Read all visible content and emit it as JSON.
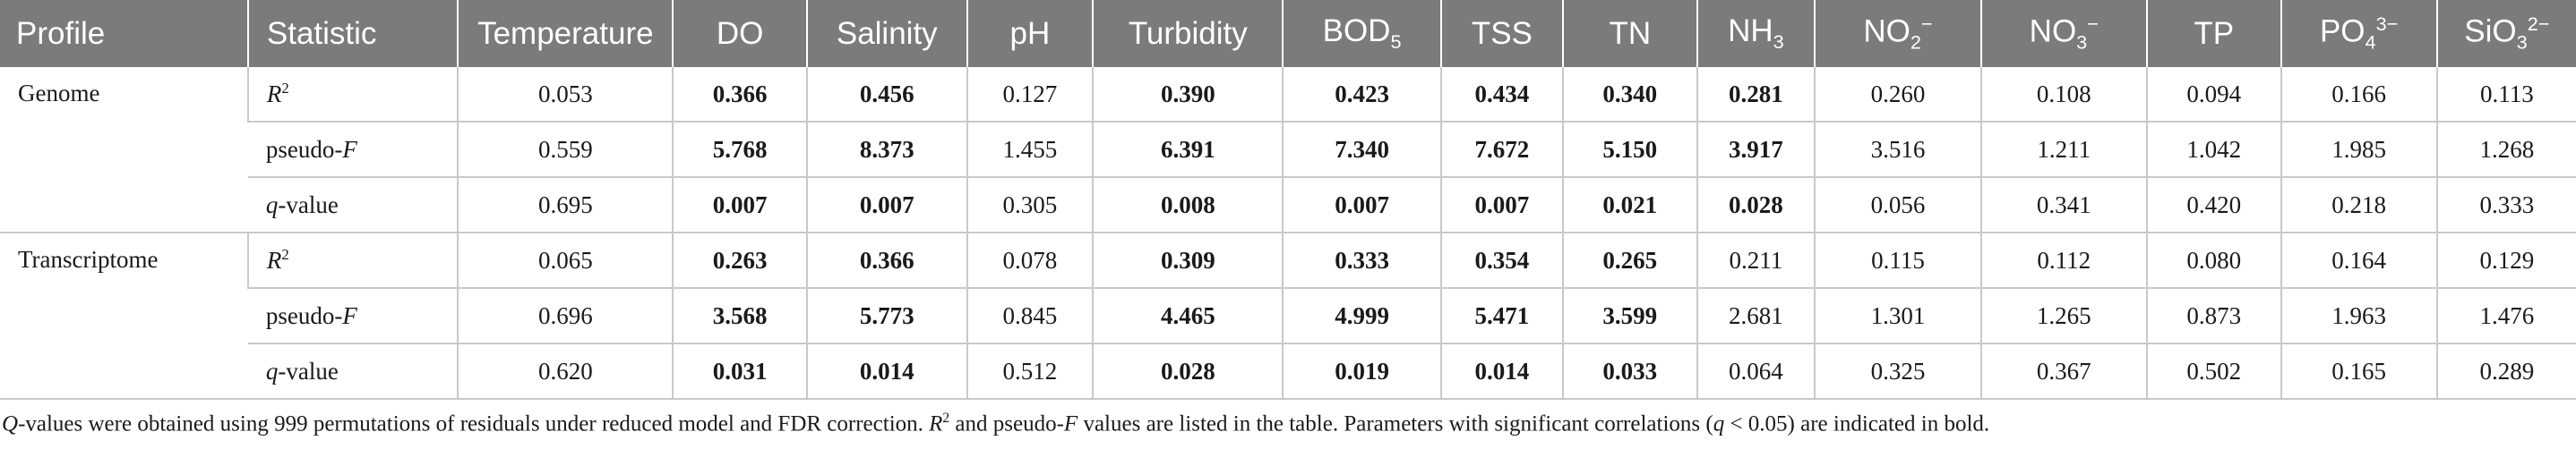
{
  "table": {
    "headers": {
      "profile": "Profile",
      "statistic": "Statistic",
      "temperature": "Temperature",
      "do": "DO",
      "salinity": "Salinity",
      "ph": "pH",
      "turbidity": "Turbidity",
      "bod_base": "BOD",
      "bod_sub": "5",
      "tss": "TSS",
      "tn": "TN",
      "nh_base": "NH",
      "nh_sub": "3",
      "no2_base": "NO",
      "no2_sub": "2",
      "no2_sup": "−",
      "no3_base": "NO",
      "no3_sub": "3",
      "no3_sup": "−",
      "tp": "TP",
      "po4_base": "PO",
      "po4_sub": "4",
      "po4_sup": "3−",
      "sio3_base": "SiO",
      "sio3_sub": "3",
      "sio3_sup": "2−"
    },
    "groups": [
      {
        "profile": "Genome",
        "rows": [
          {
            "stat_base": "R",
            "stat_sup": "2",
            "stat_suffix": "",
            "values": [
              "0.053",
              "0.366",
              "0.456",
              "0.127",
              "0.390",
              "0.423",
              "0.434",
              "0.340",
              "0.281",
              "0.260",
              "0.108",
              "0.094",
              "0.166",
              "0.113"
            ]
          },
          {
            "stat_base": "pseudo-",
            "stat_italic": "F",
            "values": [
              "0.559",
              "5.768",
              "8.373",
              "1.455",
              "6.391",
              "7.340",
              "7.672",
              "5.150",
              "3.917",
              "3.516",
              "1.211",
              "1.042",
              "1.985",
              "1.268"
            ]
          },
          {
            "stat_italic": "q",
            "stat_suffix": "-value",
            "values": [
              "0.695",
              "0.007",
              "0.007",
              "0.305",
              "0.008",
              "0.007",
              "0.007",
              "0.021",
              "0.028",
              "0.056",
              "0.341",
              "0.420",
              "0.218",
              "0.333"
            ]
          }
        ]
      },
      {
        "profile": "Transcriptome",
        "rows": [
          {
            "stat_base": "R",
            "stat_sup": "2",
            "values": [
              "0.065",
              "0.263",
              "0.366",
              "0.078",
              "0.309",
              "0.333",
              "0.354",
              "0.265",
              "0.211",
              "0.115",
              "0.112",
              "0.080",
              "0.164",
              "0.129"
            ]
          },
          {
            "stat_base": "pseudo-",
            "stat_italic": "F",
            "values": [
              "0.696",
              "3.568",
              "5.773",
              "0.845",
              "4.465",
              "4.999",
              "5.471",
              "3.599",
              "2.681",
              "1.301",
              "1.265",
              "0.873",
              "1.963",
              "1.476"
            ]
          },
          {
            "stat_italic": "q",
            "stat_suffix": "-value",
            "values": [
              "0.620",
              "0.031",
              "0.014",
              "0.512",
              "0.028",
              "0.019",
              "0.014",
              "0.033",
              "0.064",
              "0.325",
              "0.367",
              "0.502",
              "0.165",
              "0.289"
            ]
          }
        ]
      }
    ]
  },
  "footnote": {
    "q": "Q",
    "part1": "-values were obtained using 999 permutations of residuals under reduced model and FDR correction. ",
    "r": "R",
    "r_sup": "2",
    "part2": " and pseudo-",
    "f": "F",
    "part3": " values are listed in the table. Parameters with significant correlations (",
    "q2": "q",
    "part4": " < 0.05) are indicated in bold."
  }
}
